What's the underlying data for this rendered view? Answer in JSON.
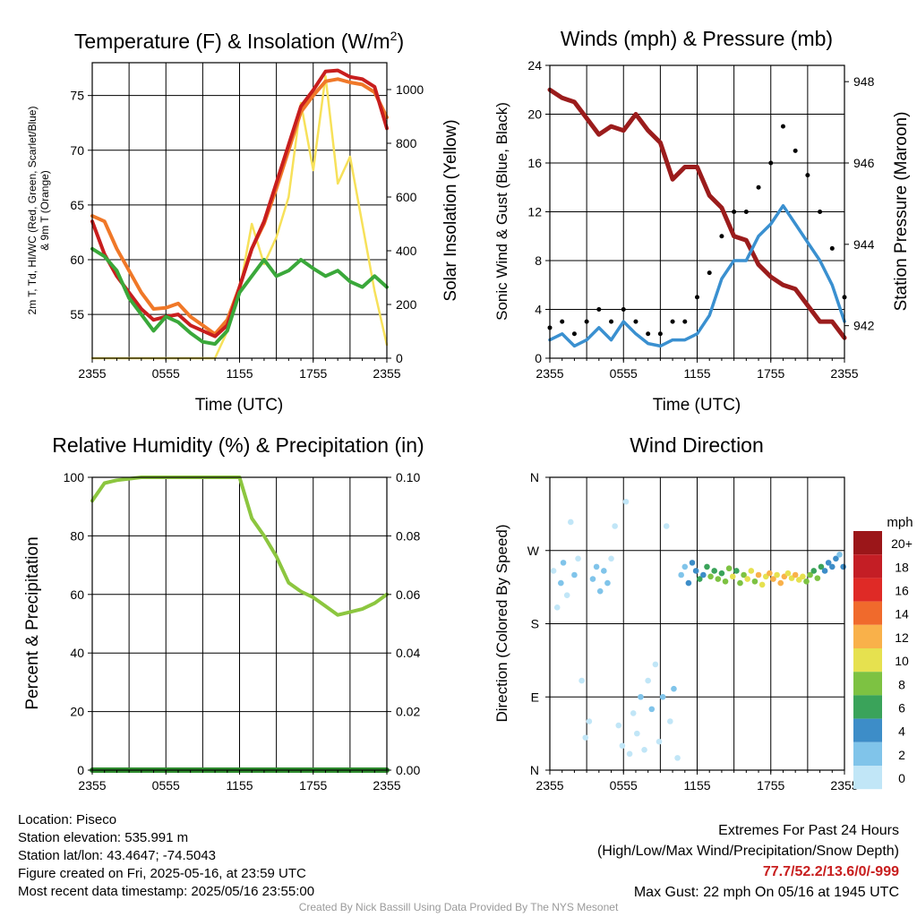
{
  "panels": {
    "temperature": {
      "title": "Temperature (F) & Insolation (W/m2)",
      "title_main": "Temperature (F) & Insolation (W/m",
      "title_sup": "2",
      "title_end": ")",
      "ylabel_left_line1": "2m T, Td, HI/WC (Red, Green, Scarlet/Blue)",
      "ylabel_left_line2": "& 9m T (Orange)",
      "ylabel_right": "Solar Insolation (Yellow)",
      "xlabel": "Time (UTC)"
    },
    "wind": {
      "title": "Winds (mph) & Pressure (mb)",
      "ylabel_left": "Sonic Wind & Gust (Blue, Black)",
      "ylabel_right": "Station Pressure (Maroon)",
      "xlabel": "Time (UTC)"
    },
    "humidity": {
      "title": "Relative Humidity (%) & Precipitation (in)",
      "ylabel_left": "Percent & Precipitation"
    },
    "direction": {
      "title": "Wind Direction",
      "ylabel_left": "Direction (Colored By Speed)",
      "legend_title": "mph",
      "legend_labels": [
        "20+",
        "18",
        "16",
        "14",
        "12",
        "10",
        "8",
        "6",
        "4",
        "2",
        "0"
      ]
    }
  },
  "colors": {
    "temp": "#c81e1e",
    "dewpoint": "#3aa83a",
    "temp9m": "#f07828",
    "insolation": "#f7e15a",
    "wind": "#3a90d0",
    "gust": "#000000",
    "pressure": "#9b1c1c",
    "rh": "#8cc63f",
    "precip": "#2e8b2e",
    "speed_scale": [
      "#c1e6f7",
      "#80c4ea",
      "#3d8dc8",
      "#3aa35a",
      "#7dc242",
      "#e6e14f",
      "#f9b14a",
      "#f06a2c",
      "#df2a26",
      "#c41e25",
      "#9b1619"
    ]
  },
  "info": {
    "location": "Location: Piseco",
    "elevation": "Station elevation: 535.991 m",
    "latlon": "Station lat/lon: 43.4647; -74.5043",
    "created": "Figure created on Fri, 2025-05-16, at 23:59 UTC",
    "latest": "Most recent data timestamp: 2025/05/16 23:55:00"
  },
  "extremes": {
    "header": "Extremes For Past 24 Hours",
    "subheader": "(High/Low/Max Wind/Precipitation/Snow Depth)",
    "values": "77.7/52.2/13.6/0/-999",
    "gust": "Max Gust: 22 mph On 05/16 at 1945 UTC"
  },
  "credit": "Created By Nick Bassill Using Data Provided By The NYS Mesonet",
  "chart_data": [
    {
      "type": "line",
      "title": "Temperature (F) & Insolation (W/m2)",
      "xlabel": "Time (UTC)",
      "ylabel": "2m T, Td, HI/WC (Red, Green, Scarlet/Blue) & 9m T (Orange)",
      "y2label": "Solar Insolation (Yellow)",
      "x_ticks": [
        "2355",
        "0555",
        "1155",
        "1755",
        "2355"
      ],
      "x": [
        0,
        1,
        2,
        3,
        4,
        5,
        6,
        7,
        8,
        9,
        10,
        11,
        12,
        13,
        14,
        15,
        16,
        17,
        18,
        19,
        20,
        21,
        22,
        23,
        24
      ],
      "ylim": [
        51,
        78
      ],
      "y_ticks": [
        55,
        60,
        65,
        70,
        75
      ],
      "y2lim": [
        0,
        1100
      ],
      "y2_ticks": [
        0,
        200,
        400,
        600,
        800,
        1000
      ],
      "grid": true,
      "series": [
        {
          "name": "2m T",
          "axis": "left",
          "values": [
            63.5,
            60.5,
            58.5,
            57,
            55.5,
            54.5,
            54.8,
            55,
            54,
            53.5,
            53,
            54,
            57.5,
            61,
            63.5,
            67,
            70.5,
            74,
            75.5,
            77.2,
            77.3,
            76.7,
            76.5,
            75.8,
            72
          ]
        },
        {
          "name": "9m T",
          "axis": "left",
          "values": [
            64,
            63.5,
            61,
            59,
            57,
            55.5,
            55.6,
            56,
            54.8,
            54,
            53.2,
            54.5,
            57.5,
            61,
            63.3,
            66.5,
            70,
            73.5,
            75,
            76.3,
            76.5,
            76.2,
            76,
            75.3,
            73
          ]
        },
        {
          "name": "Td",
          "axis": "left",
          "values": [
            61,
            60.3,
            59,
            56.5,
            55,
            53.5,
            54.8,
            54.3,
            53.3,
            52.5,
            52.3,
            53.5,
            57,
            58.5,
            60,
            58.5,
            59,
            60,
            59.2,
            58.5,
            59,
            58,
            57.5,
            58.5,
            57.5
          ]
        },
        {
          "name": "Solar Insolation",
          "axis": "right",
          "values": [
            0,
            0,
            0,
            0,
            0,
            0,
            0,
            0,
            0,
            0,
            0,
            100,
            250,
            500,
            350,
            450,
            600,
            950,
            700,
            1050,
            650,
            750,
            500,
            250,
            50
          ]
        }
      ]
    },
    {
      "type": "line",
      "title": "Winds (mph) & Pressure (mb)",
      "xlabel": "Time (UTC)",
      "ylabel": "Sonic Wind & Gust (Blue, Black)",
      "y2label": "Station Pressure (Maroon)",
      "x_ticks": [
        "2355",
        "0555",
        "1155",
        "1755",
        "2355"
      ],
      "x": [
        0,
        1,
        2,
        3,
        4,
        5,
        6,
        7,
        8,
        9,
        10,
        11,
        12,
        13,
        14,
        15,
        16,
        17,
        18,
        19,
        20,
        21,
        22,
        23,
        24
      ],
      "ylim": [
        0,
        24
      ],
      "y_ticks": [
        0,
        4,
        8,
        12,
        16,
        20,
        24
      ],
      "y2lim": [
        941.2,
        948.4
      ],
      "y2_ticks": [
        942,
        944,
        946,
        948
      ],
      "grid": true,
      "series": [
        {
          "name": "Sonic Wind",
          "axis": "left",
          "values": [
            1.5,
            2,
            1,
            1.5,
            2.5,
            1.5,
            3,
            2,
            1.2,
            1,
            1.5,
            1.5,
            2,
            3.5,
            6.5,
            8,
            8,
            10,
            11,
            12.5,
            11,
            9.5,
            8,
            6,
            3
          ]
        },
        {
          "name": "Gust",
          "axis": "left",
          "values": [
            2.5,
            3,
            2,
            3,
            4,
            3,
            4,
            3,
            2,
            2,
            3,
            3,
            5,
            7,
            10,
            12,
            12,
            14,
            16,
            19,
            17,
            15,
            12,
            9,
            5
          ]
        },
        {
          "name": "Station Pressure",
          "axis": "right",
          "values": [
            947.8,
            947.6,
            947.5,
            947.1,
            946.7,
            946.9,
            946.8,
            947.2,
            946.8,
            946.5,
            945.6,
            945.9,
            945.9,
            945.2,
            944.9,
            944.2,
            944.1,
            943.5,
            943.2,
            943,
            942.9,
            942.5,
            942.1,
            942.1,
            941.7
          ]
        }
      ]
    },
    {
      "type": "line",
      "title": "Relative Humidity (%) & Precipitation (in)",
      "ylabel": "Percent & Precipitation",
      "x_ticks": [
        "2355",
        "0555",
        "1155",
        "1755",
        "2355"
      ],
      "x": [
        0,
        1,
        2,
        3,
        4,
        5,
        6,
        7,
        8,
        9,
        10,
        11,
        12,
        13,
        14,
        15,
        16,
        17,
        18,
        19,
        20,
        21,
        22,
        23,
        24
      ],
      "ylim": [
        0,
        100
      ],
      "y_ticks": [
        0,
        20,
        40,
        60,
        80,
        100
      ],
      "y2lim": [
        0,
        0.1
      ],
      "y2_ticks": [
        0.0,
        0.02,
        0.04,
        0.06,
        0.08,
        0.1
      ],
      "grid": true,
      "series": [
        {
          "name": "Relative Humidity",
          "axis": "left",
          "values": [
            92,
            98,
            99,
            99.5,
            100,
            100,
            100,
            100,
            100,
            100,
            100,
            100,
            100,
            86,
            80,
            73,
            64,
            61,
            59,
            56,
            53,
            54,
            55,
            57,
            60
          ]
        },
        {
          "name": "Precipitation",
          "axis": "right",
          "values": [
            0,
            0,
            0,
            0,
            0,
            0,
            0,
            0,
            0,
            0,
            0,
            0,
            0,
            0,
            0,
            0,
            0,
            0,
            0,
            0,
            0,
            0,
            0,
            0,
            0
          ]
        }
      ]
    },
    {
      "type": "scatter",
      "title": "Wind Direction",
      "ylabel": "Direction (Colored By Speed)",
      "x_ticks": [
        "2355",
        "0555",
        "1155",
        "1755",
        "2355"
      ],
      "y_ticks": [
        "N",
        "E",
        "S",
        "W",
        "N"
      ],
      "ylim": [
        0,
        360
      ],
      "legend_title": "mph",
      "legend_placement": "right",
      "color_levels": [
        0,
        2,
        4,
        6,
        8,
        10,
        12,
        14,
        16,
        18,
        20
      ],
      "grid": true,
      "points": [
        {
          "x": 0.3,
          "y": 245,
          "speed": 1.5
        },
        {
          "x": 0.6,
          "y": 200,
          "speed": 1
        },
        {
          "x": 0.9,
          "y": 230,
          "speed": 2.5
        },
        {
          "x": 1.1,
          "y": 255,
          "speed": 2
        },
        {
          "x": 1.4,
          "y": 215,
          "speed": 1
        },
        {
          "x": 1.7,
          "y": 305,
          "speed": 0.5
        },
        {
          "x": 2.0,
          "y": 240,
          "speed": 2
        },
        {
          "x": 2.3,
          "y": 260,
          "speed": 1.5
        },
        {
          "x": 2.6,
          "y": 110,
          "speed": 0.5
        },
        {
          "x": 2.9,
          "y": 40,
          "speed": 1
        },
        {
          "x": 3.2,
          "y": 60,
          "speed": 0.5
        },
        {
          "x": 3.5,
          "y": 235,
          "speed": 2.5
        },
        {
          "x": 3.8,
          "y": 250,
          "speed": 3
        },
        {
          "x": 4.1,
          "y": 220,
          "speed": 2
        },
        {
          "x": 4.4,
          "y": 245,
          "speed": 3
        },
        {
          "x": 4.7,
          "y": 230,
          "speed": 2.5
        },
        {
          "x": 5.0,
          "y": 260,
          "speed": 1.5
        },
        {
          "x": 5.3,
          "y": 300,
          "speed": 0.5
        },
        {
          "x": 5.6,
          "y": 55,
          "speed": 1.5
        },
        {
          "x": 5.9,
          "y": 30,
          "speed": 0.5
        },
        {
          "x": 6.2,
          "y": 330,
          "speed": 0.5
        },
        {
          "x": 6.5,
          "y": 20,
          "speed": 1
        },
        {
          "x": 6.8,
          "y": 70,
          "speed": 1.5
        },
        {
          "x": 7.1,
          "y": 45,
          "speed": 0.5
        },
        {
          "x": 7.4,
          "y": 90,
          "speed": 2
        },
        {
          "x": 7.7,
          "y": 25,
          "speed": 0.5
        },
        {
          "x": 8.0,
          "y": 110,
          "speed": 1.5
        },
        {
          "x": 8.3,
          "y": 75,
          "speed": 2
        },
        {
          "x": 8.6,
          "y": 130,
          "speed": 1
        },
        {
          "x": 8.9,
          "y": 35,
          "speed": 0.5
        },
        {
          "x": 9.2,
          "y": 90,
          "speed": 2
        },
        {
          "x": 9.5,
          "y": 300,
          "speed": 0.5
        },
        {
          "x": 9.8,
          "y": 60,
          "speed": 1
        },
        {
          "x": 10.1,
          "y": 100,
          "speed": 2.5
        },
        {
          "x": 10.4,
          "y": 15,
          "speed": 0.5
        },
        {
          "x": 10.7,
          "y": 240,
          "speed": 3
        },
        {
          "x": 11.0,
          "y": 250,
          "speed": 3
        },
        {
          "x": 11.3,
          "y": 230,
          "speed": 4
        },
        {
          "x": 11.6,
          "y": 255,
          "speed": 4
        },
        {
          "x": 11.9,
          "y": 245,
          "speed": 5
        },
        {
          "x": 12.2,
          "y": 235,
          "speed": 6
        },
        {
          "x": 12.5,
          "y": 240,
          "speed": 5
        },
        {
          "x": 12.8,
          "y": 250,
          "speed": 7
        },
        {
          "x": 13.1,
          "y": 238,
          "speed": 8
        },
        {
          "x": 13.4,
          "y": 245,
          "speed": 7
        },
        {
          "x": 13.7,
          "y": 235,
          "speed": 9
        },
        {
          "x": 14.0,
          "y": 242,
          "speed": 6
        },
        {
          "x": 14.3,
          "y": 232,
          "speed": 8
        },
        {
          "x": 14.6,
          "y": 248,
          "speed": 9
        },
        {
          "x": 14.9,
          "y": 238,
          "speed": 10
        },
        {
          "x": 15.2,
          "y": 245,
          "speed": 7
        },
        {
          "x": 15.5,
          "y": 230,
          "speed": 8
        },
        {
          "x": 15.8,
          "y": 240,
          "speed": 9
        },
        {
          "x": 16.1,
          "y": 235,
          "speed": 11
        },
        {
          "x": 16.4,
          "y": 245,
          "speed": 10
        },
        {
          "x": 16.7,
          "y": 232,
          "speed": 9
        },
        {
          "x": 17.0,
          "y": 240,
          "speed": 12
        },
        {
          "x": 17.3,
          "y": 228,
          "speed": 10
        },
        {
          "x": 17.6,
          "y": 238,
          "speed": 11
        },
        {
          "x": 17.9,
          "y": 242,
          "speed": 13
        },
        {
          "x": 18.2,
          "y": 235,
          "speed": 12
        },
        {
          "x": 18.5,
          "y": 240,
          "speed": 11
        },
        {
          "x": 18.8,
          "y": 230,
          "speed": 13
        },
        {
          "x": 19.1,
          "y": 238,
          "speed": 12
        },
        {
          "x": 19.4,
          "y": 242,
          "speed": 10
        },
        {
          "x": 19.7,
          "y": 236,
          "speed": 11
        },
        {
          "x": 20.0,
          "y": 240,
          "speed": 12
        },
        {
          "x": 20.3,
          "y": 234,
          "speed": 10
        },
        {
          "x": 20.6,
          "y": 238,
          "speed": 11
        },
        {
          "x": 20.9,
          "y": 232,
          "speed": 9
        },
        {
          "x": 21.2,
          "y": 240,
          "speed": 8
        },
        {
          "x": 21.5,
          "y": 245,
          "speed": 7
        },
        {
          "x": 21.8,
          "y": 236,
          "speed": 8
        },
        {
          "x": 22.1,
          "y": 250,
          "speed": 6
        },
        {
          "x": 22.4,
          "y": 245,
          "speed": 5
        },
        {
          "x": 22.7,
          "y": 255,
          "speed": 4
        },
        {
          "x": 23.0,
          "y": 250,
          "speed": 5
        },
        {
          "x": 23.3,
          "y": 260,
          "speed": 4
        },
        {
          "x": 23.6,
          "y": 265,
          "speed": 3
        },
        {
          "x": 23.9,
          "y": 250,
          "speed": 4
        }
      ]
    }
  ]
}
